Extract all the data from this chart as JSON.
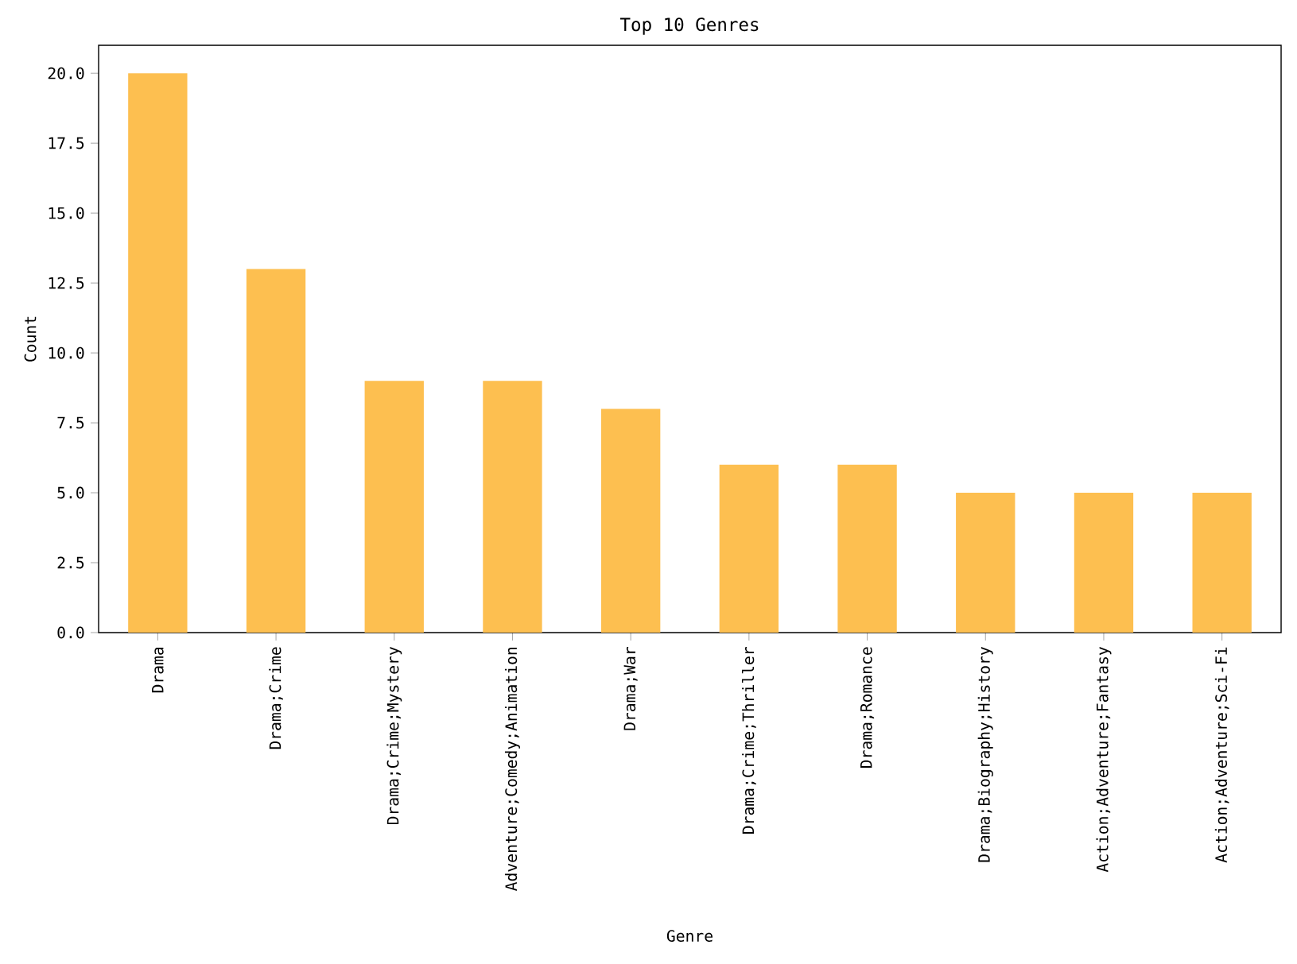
{
  "chart_data": {
    "type": "bar",
    "title": "Top 10 Genres",
    "xlabel": "Genre",
    "ylabel": "Count",
    "categories": [
      "Drama",
      "Drama;Crime",
      "Drama;Crime;Mystery",
      "Adventure;Comedy;Animation",
      "Drama;War",
      "Drama;Crime;Thriller",
      "Drama;Romance",
      "Drama;Biography;History",
      "Action;Adventure;Fantasy",
      "Action;Adventure;Sci-Fi"
    ],
    "values": [
      20,
      13,
      9,
      9,
      8,
      6,
      6,
      5,
      5,
      5
    ],
    "color": "#fdbf50",
    "ylim": [
      0,
      21
    ],
    "yticks": [
      {
        "value": 0,
        "label": "0.0"
      },
      {
        "value": 2.5,
        "label": "2.5"
      },
      {
        "value": 5,
        "label": "5.0"
      },
      {
        "value": 7.5,
        "label": "7.5"
      },
      {
        "value": 10,
        "label": "10.0"
      },
      {
        "value": 12.5,
        "label": "12.5"
      },
      {
        "value": 15,
        "label": "15.0"
      },
      {
        "value": 17.5,
        "label": "17.5"
      },
      {
        "value": 20,
        "label": "20.0"
      }
    ],
    "grid": false
  }
}
